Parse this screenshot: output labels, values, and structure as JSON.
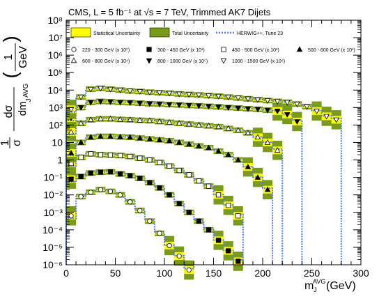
{
  "chart_data": {
    "type": "scatter",
    "title": "CMS, L = 5 fb⁻¹ at √s = 7 TeV, Trimmed AK7 Dijets",
    "xlabel": "m_J^AVG (GeV)",
    "ylabel": "1/σ dσ/dm_J^AVG (1/GeV)",
    "xlim": [
      0,
      300
    ],
    "ylim_log10": [
      -6,
      8
    ],
    "x_ticks": [
      "0",
      "50",
      "100",
      "150",
      "200",
      "250",
      "300"
    ],
    "y_ticks": [
      "10⁻⁶",
      "10⁻⁵",
      "10⁻⁴",
      "10⁻³",
      "10⁻²",
      "10⁻¹",
      "1",
      "10",
      "10²",
      "10³",
      "10⁴",
      "10⁵",
      "10⁶",
      "10⁷",
      "10⁸"
    ],
    "grid": false,
    "bin_width_gev": 10,
    "legend_top": [
      "Statistical Uncertainty",
      "Total Uncertainty",
      "HERWIG++, Tune 23"
    ],
    "colors": {
      "stat": "#ffff00",
      "total": "#7a9a1a",
      "mc": "#4d79ff"
    },
    "series": [
      {
        "name": "220 - 300 GeV (x 10⁰)",
        "marker": "open-circle",
        "x": [
          5,
          15,
          25,
          35,
          45,
          55,
          65,
          75,
          85,
          95,
          105,
          115,
          125
        ],
        "log10y": [
          -3.2,
          -2.1,
          -1.85,
          -1.7,
          -1.8,
          -2.0,
          -2.4,
          -2.9,
          -3.5,
          -4.2,
          -4.9,
          -5.5,
          -6.3
        ]
      },
      {
        "name": "300 - 450 GeV (x 10¹)",
        "marker": "filled-square",
        "x": [
          5,
          15,
          25,
          35,
          45,
          55,
          65,
          75,
          85,
          95,
          105,
          115,
          125,
          135,
          145,
          155,
          165,
          175
        ],
        "log10y": [
          -1.1,
          -0.95,
          -0.75,
          -0.7,
          -0.68,
          -0.8,
          -0.9,
          -1.05,
          -1.3,
          -1.6,
          -2.0,
          -2.5,
          -3.0,
          -3.5,
          -4.0,
          -4.6,
          -5.2,
          -5.8
        ]
      },
      {
        "name": "450 - 500 GeV (x 10²)",
        "marker": "open-square",
        "x": [
          5,
          15,
          25,
          35,
          45,
          55,
          65,
          75,
          85,
          95,
          105,
          115,
          125,
          135,
          145,
          155,
          165,
          175
        ],
        "log10y": [
          -0.2,
          0.15,
          0.35,
          0.3,
          0.28,
          0.25,
          0.2,
          0.1,
          0.0,
          -0.15,
          -0.35,
          -0.6,
          -0.85,
          -1.2,
          -1.5,
          -2.0,
          -2.6,
          -3.2
        ]
      },
      {
        "name": "500 - 600 GeV (x 10³)",
        "marker": "filled-triangle-up",
        "x": [
          5,
          15,
          25,
          35,
          45,
          55,
          65,
          75,
          85,
          95,
          105,
          115,
          125,
          135,
          145,
          155,
          165,
          175,
          185,
          195,
          205
        ],
        "log10y": [
          0.4,
          1.0,
          1.3,
          1.35,
          1.35,
          1.32,
          1.3,
          1.25,
          1.2,
          1.15,
          1.1,
          1.0,
          0.9,
          0.8,
          0.7,
          0.5,
          0.3,
          0.0,
          -0.4,
          -1.0,
          -1.7
        ]
      },
      {
        "name": "600 - 800 GeV (x 10⁴)",
        "marker": "open-triangle-up",
        "x": [
          5,
          15,
          25,
          35,
          45,
          55,
          65,
          75,
          85,
          95,
          105,
          115,
          125,
          135,
          145,
          155,
          165,
          175,
          185,
          195,
          205,
          215
        ],
        "log10y": [
          1.6,
          2.1,
          2.3,
          2.35,
          2.35,
          2.32,
          2.3,
          2.27,
          2.25,
          2.2,
          2.15,
          2.1,
          2.05,
          2.0,
          1.95,
          1.9,
          1.8,
          1.7,
          1.55,
          1.3,
          1.0,
          0.55
        ]
      },
      {
        "name": "800 - 1000 GeV (x 10⁵)",
        "marker": "filled-triangle-down",
        "x": [
          5,
          15,
          25,
          35,
          45,
          55,
          65,
          75,
          85,
          95,
          105,
          115,
          125,
          135,
          145,
          155,
          165,
          175,
          185,
          195,
          205,
          215,
          225,
          235
        ],
        "log10y": [
          2.4,
          3.0,
          3.3,
          3.35,
          3.33,
          3.3,
          3.28,
          3.25,
          3.22,
          3.2,
          3.17,
          3.15,
          3.12,
          3.1,
          3.07,
          3.04,
          3.0,
          2.97,
          2.93,
          2.9,
          2.85,
          2.8,
          2.6,
          2.2
        ]
      },
      {
        "name": "1000 - 1500 GeV (x 10⁶)",
        "marker": "open-triangle-down",
        "x": [
          5,
          15,
          25,
          35,
          45,
          55,
          65,
          75,
          85,
          95,
          105,
          115,
          125,
          135,
          145,
          155,
          165,
          175,
          185,
          195,
          205,
          215,
          225,
          235,
          245,
          255,
          265,
          275
        ],
        "log10y": [
          2.9,
          3.6,
          4.05,
          4.1,
          4.05,
          4.0,
          3.95,
          3.92,
          3.88,
          3.85,
          3.82,
          3.78,
          3.75,
          3.72,
          3.68,
          3.65,
          3.6,
          3.55,
          3.5,
          3.45,
          3.4,
          3.35,
          3.3,
          3.2,
          3.05,
          2.8,
          2.5,
          2.3
        ]
      }
    ]
  }
}
